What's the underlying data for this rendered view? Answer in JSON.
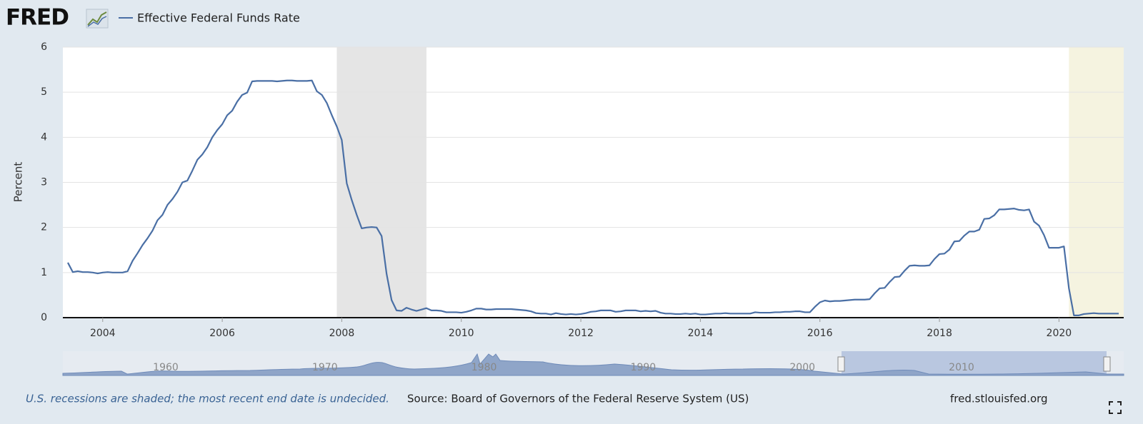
{
  "logo": "FRED",
  "footer": {
    "note": "U.S. recessions are shaded; the most recent end date is undecided.",
    "source": "Source: Board of Governors of the Federal Reserve System (US)",
    "site": "fred.stlouisfed.org"
  },
  "navigator": {
    "labels": [
      "1960",
      "1970",
      "1980",
      "1990",
      "2000",
      "2010"
    ]
  },
  "chart_data": {
    "type": "line",
    "ylabel": "Percent",
    "xlim": [
      "2003-05",
      "2021-02"
    ],
    "ylim": [
      0,
      6
    ],
    "yticks": [
      0,
      1,
      2,
      3,
      4,
      5,
      6
    ],
    "xticks": [
      2004,
      2006,
      2008,
      2010,
      2012,
      2014,
      2016,
      2018,
      2020
    ],
    "grid": true,
    "recessions": [
      {
        "start": "2007-12",
        "end": "2009-06"
      },
      {
        "start": "2020-03",
        "end": "2021-02"
      }
    ],
    "x": [
      "2003-06",
      "2003-07",
      "2003-08",
      "2003-09",
      "2003-10",
      "2003-11",
      "2003-12",
      "2004-01",
      "2004-02",
      "2004-03",
      "2004-04",
      "2004-05",
      "2004-06",
      "2004-07",
      "2004-08",
      "2004-09",
      "2004-10",
      "2004-11",
      "2004-12",
      "2005-01",
      "2005-02",
      "2005-03",
      "2005-04",
      "2005-05",
      "2005-06",
      "2005-07",
      "2005-08",
      "2005-09",
      "2005-10",
      "2005-11",
      "2005-12",
      "2006-01",
      "2006-02",
      "2006-03",
      "2006-04",
      "2006-05",
      "2006-06",
      "2006-07",
      "2006-08",
      "2006-09",
      "2006-10",
      "2006-11",
      "2006-12",
      "2007-01",
      "2007-02",
      "2007-03",
      "2007-04",
      "2007-05",
      "2007-06",
      "2007-07",
      "2007-08",
      "2007-09",
      "2007-10",
      "2007-11",
      "2007-12",
      "2008-01",
      "2008-02",
      "2008-03",
      "2008-04",
      "2008-05",
      "2008-06",
      "2008-07",
      "2008-08",
      "2008-09",
      "2008-10",
      "2008-11",
      "2008-12",
      "2009-01",
      "2009-02",
      "2009-03",
      "2009-04",
      "2009-05",
      "2009-06",
      "2009-07",
      "2009-08",
      "2009-09",
      "2009-10",
      "2009-11",
      "2009-12",
      "2010-01",
      "2010-02",
      "2010-03",
      "2010-04",
      "2010-05",
      "2010-06",
      "2010-07",
      "2010-08",
      "2010-09",
      "2010-10",
      "2010-11",
      "2010-12",
      "2011-01",
      "2011-02",
      "2011-03",
      "2011-04",
      "2011-05",
      "2011-06",
      "2011-07",
      "2011-08",
      "2011-09",
      "2011-10",
      "2011-11",
      "2011-12",
      "2012-01",
      "2012-02",
      "2012-03",
      "2012-04",
      "2012-05",
      "2012-06",
      "2012-07",
      "2012-08",
      "2012-09",
      "2012-10",
      "2012-11",
      "2012-12",
      "2013-01",
      "2013-02",
      "2013-03",
      "2013-04",
      "2013-05",
      "2013-06",
      "2013-07",
      "2013-08",
      "2013-09",
      "2013-10",
      "2013-11",
      "2013-12",
      "2014-01",
      "2014-02",
      "2014-03",
      "2014-04",
      "2014-05",
      "2014-06",
      "2014-07",
      "2014-08",
      "2014-09",
      "2014-10",
      "2014-11",
      "2014-12",
      "2015-01",
      "2015-02",
      "2015-03",
      "2015-04",
      "2015-05",
      "2015-06",
      "2015-07",
      "2015-08",
      "2015-09",
      "2015-10",
      "2015-11",
      "2015-12",
      "2016-01",
      "2016-02",
      "2016-03",
      "2016-04",
      "2016-05",
      "2016-06",
      "2016-07",
      "2016-08",
      "2016-09",
      "2016-10",
      "2016-11",
      "2016-12",
      "2017-01",
      "2017-02",
      "2017-03",
      "2017-04",
      "2017-05",
      "2017-06",
      "2017-07",
      "2017-08",
      "2017-09",
      "2017-10",
      "2017-11",
      "2017-12",
      "2018-01",
      "2018-02",
      "2018-03",
      "2018-04",
      "2018-05",
      "2018-06",
      "2018-07",
      "2018-08",
      "2018-09",
      "2018-10",
      "2018-11",
      "2018-12",
      "2019-01",
      "2019-02",
      "2019-03",
      "2019-04",
      "2019-05",
      "2019-06",
      "2019-07",
      "2019-08",
      "2019-09",
      "2019-10",
      "2019-11",
      "2019-12",
      "2020-01",
      "2020-02",
      "2020-03",
      "2020-04",
      "2020-05",
      "2020-06",
      "2020-07",
      "2020-08",
      "2020-09",
      "2020-10",
      "2020-11",
      "2020-12",
      "2021-01"
    ],
    "series": [
      {
        "name": "Effective Federal Funds Rate",
        "color": "#4a6fa5",
        "values": [
          1.22,
          1.01,
          1.03,
          1.01,
          1.01,
          1.0,
          0.98,
          1.0,
          1.01,
          1.0,
          1.0,
          1.0,
          1.03,
          1.26,
          1.43,
          1.61,
          1.76,
          1.93,
          2.16,
          2.28,
          2.5,
          2.63,
          2.79,
          3.0,
          3.04,
          3.26,
          3.5,
          3.62,
          3.78,
          4.0,
          4.16,
          4.29,
          4.49,
          4.59,
          4.79,
          4.94,
          4.99,
          5.24,
          5.25,
          5.25,
          5.25,
          5.25,
          5.24,
          5.25,
          5.26,
          5.26,
          5.25,
          5.25,
          5.25,
          5.26,
          5.02,
          4.94,
          4.76,
          4.49,
          4.24,
          3.94,
          2.98,
          2.61,
          2.28,
          1.98,
          2.0,
          2.01,
          2.0,
          1.81,
          0.97,
          0.39,
          0.16,
          0.15,
          0.22,
          0.18,
          0.15,
          0.18,
          0.21,
          0.16,
          0.16,
          0.15,
          0.12,
          0.12,
          0.12,
          0.11,
          0.13,
          0.16,
          0.2,
          0.2,
          0.18,
          0.18,
          0.19,
          0.19,
          0.19,
          0.19,
          0.18,
          0.17,
          0.16,
          0.14,
          0.1,
          0.09,
          0.09,
          0.07,
          0.1,
          0.08,
          0.07,
          0.08,
          0.07,
          0.08,
          0.1,
          0.13,
          0.14,
          0.16,
          0.16,
          0.16,
          0.13,
          0.14,
          0.16,
          0.16,
          0.16,
          0.14,
          0.15,
          0.14,
          0.15,
          0.11,
          0.09,
          0.09,
          0.08,
          0.08,
          0.09,
          0.08,
          0.09,
          0.07,
          0.07,
          0.08,
          0.09,
          0.09,
          0.1,
          0.09,
          0.09,
          0.09,
          0.09,
          0.09,
          0.12,
          0.11,
          0.11,
          0.11,
          0.12,
          0.12,
          0.13,
          0.13,
          0.14,
          0.14,
          0.12,
          0.12,
          0.24,
          0.34,
          0.38,
          0.36,
          0.37,
          0.37,
          0.38,
          0.39,
          0.4,
          0.4,
          0.4,
          0.41,
          0.54,
          0.65,
          0.66,
          0.79,
          0.9,
          0.91,
          1.04,
          1.15,
          1.16,
          1.15,
          1.15,
          1.16,
          1.3,
          1.41,
          1.42,
          1.51,
          1.69,
          1.7,
          1.82,
          1.91,
          1.91,
          1.95,
          2.19,
          2.2,
          2.27,
          2.4,
          2.4,
          2.41,
          2.42,
          2.39,
          2.38,
          2.4,
          2.13,
          2.04,
          1.83,
          1.55,
          1.55,
          1.55,
          1.58,
          0.65,
          0.05,
          0.05,
          0.08,
          0.09,
          0.1,
          0.09,
          0.09,
          0.09,
          0.09,
          0.09
        ]
      }
    ]
  }
}
